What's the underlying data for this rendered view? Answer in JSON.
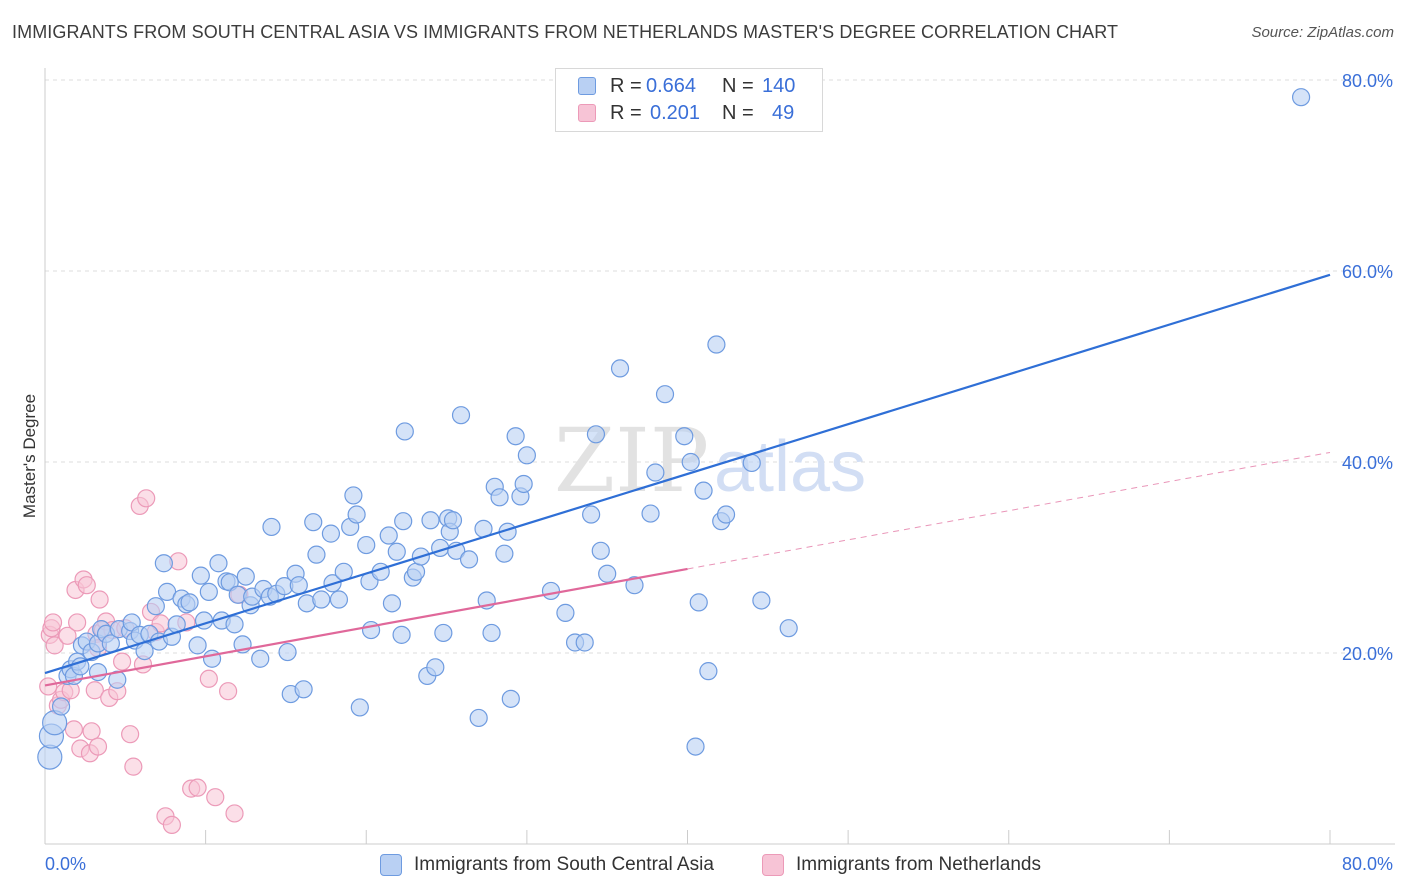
{
  "title": "IMMIGRANTS FROM SOUTH CENTRAL ASIA VS IMMIGRANTS FROM NETHERLANDS MASTER'S DEGREE CORRELATION CHART",
  "source": "Source: ZipAtlas.com",
  "watermark": {
    "zip": "ZIP",
    "atlas": "atlas"
  },
  "legend": {
    "rows": [
      {
        "r_label": "R =",
        "r_value": "0.664",
        "n_label": "N =",
        "n_value": "140"
      },
      {
        "r_label": "R =",
        "r_value": "0.201",
        "n_label": "N =",
        "n_value": "49"
      }
    ]
  },
  "bottom_legend": [
    {
      "label": "Immigrants from South Central Asia"
    },
    {
      "label": "Immigrants from Netherlands"
    }
  ],
  "colors": {
    "blue": "#2f6fd6",
    "blue_fill": "#b9d0f3",
    "blue_stroke": "#6e9be0",
    "pink": "#e0689a",
    "pink_fill": "#f7c4d6",
    "pink_stroke": "#ec9ab8",
    "grid": "#dedede",
    "tick_text": "#3a6fd8"
  },
  "chart_data": {
    "type": "scatter",
    "title": "IMMIGRANTS FROM SOUTH CENTRAL ASIA VS IMMIGRANTS FROM NETHERLANDS MASTER'S DEGREE CORRELATION CHART",
    "xlabel": "",
    "ylabel": "Master's Degree",
    "xlim": [
      0,
      80
    ],
    "ylim": [
      0,
      80
    ],
    "x_tick_labels": [
      "0.0%",
      "80.0%"
    ],
    "y_tick_labels": [
      "20.0%",
      "40.0%",
      "60.0%",
      "80.0%"
    ],
    "y_ticks": [
      20,
      40,
      60,
      80
    ],
    "grid": true,
    "legend_position": "top-center",
    "series": [
      {
        "name": "Immigrants from South Central Asia",
        "R": 0.664,
        "N": 140,
        "trend": {
          "x": [
            0,
            80
          ],
          "y": [
            17.9,
            59.6
          ],
          "style": "solid"
        },
        "points": [
          [
            0.3,
            9.1
          ],
          [
            0.4,
            11.3
          ],
          [
            0.6,
            12.7
          ],
          [
            1.0,
            14.4
          ],
          [
            1.4,
            17.6
          ],
          [
            1.6,
            18.3
          ],
          [
            1.8,
            17.6
          ],
          [
            2.0,
            19.1
          ],
          [
            2.2,
            18.6
          ],
          [
            2.3,
            20.8
          ],
          [
            2.6,
            21.2
          ],
          [
            2.9,
            20.1
          ],
          [
            3.3,
            18.0
          ],
          [
            3.3,
            21.0
          ],
          [
            3.5,
            22.5
          ],
          [
            3.8,
            22.0
          ],
          [
            4.1,
            21.0
          ],
          [
            4.5,
            17.2
          ],
          [
            4.6,
            22.5
          ],
          [
            5.3,
            22.3
          ],
          [
            5.4,
            23.2
          ],
          [
            5.6,
            21.3
          ],
          [
            5.9,
            21.9
          ],
          [
            6.2,
            20.2
          ],
          [
            6.5,
            22.0
          ],
          [
            6.9,
            24.9
          ],
          [
            7.1,
            21.2
          ],
          [
            7.4,
            29.4
          ],
          [
            7.6,
            26.4
          ],
          [
            7.9,
            21.7
          ],
          [
            8.2,
            23.0
          ],
          [
            8.5,
            25.7
          ],
          [
            8.8,
            25.1
          ],
          [
            9.0,
            25.3
          ],
          [
            9.5,
            20.8
          ],
          [
            9.7,
            28.1
          ],
          [
            9.9,
            23.4
          ],
          [
            10.2,
            26.4
          ],
          [
            10.4,
            19.4
          ],
          [
            10.8,
            29.4
          ],
          [
            11.0,
            23.4
          ],
          [
            11.3,
            27.5
          ],
          [
            11.5,
            27.4
          ],
          [
            11.8,
            23.0
          ],
          [
            12.0,
            26.1
          ],
          [
            12.3,
            20.9
          ],
          [
            12.5,
            28.0
          ],
          [
            12.8,
            25.0
          ],
          [
            12.9,
            25.9
          ],
          [
            13.4,
            19.4
          ],
          [
            13.6,
            26.7
          ],
          [
            14.0,
            25.9
          ],
          [
            14.1,
            33.2
          ],
          [
            14.4,
            26.2
          ],
          [
            14.9,
            27.0
          ],
          [
            15.1,
            20.1
          ],
          [
            15.3,
            15.7
          ],
          [
            15.6,
            28.3
          ],
          [
            15.8,
            27.1
          ],
          [
            16.1,
            16.2
          ],
          [
            16.3,
            25.2
          ],
          [
            16.7,
            33.7
          ],
          [
            16.9,
            30.3
          ],
          [
            17.2,
            25.6
          ],
          [
            17.8,
            32.5
          ],
          [
            17.9,
            27.3
          ],
          [
            18.3,
            25.6
          ],
          [
            18.6,
            28.5
          ],
          [
            19.0,
            33.2
          ],
          [
            19.2,
            36.5
          ],
          [
            19.4,
            34.5
          ],
          [
            19.6,
            14.3
          ],
          [
            20.0,
            31.3
          ],
          [
            20.2,
            27.5
          ],
          [
            20.3,
            22.4
          ],
          [
            20.9,
            28.5
          ],
          [
            21.4,
            32.3
          ],
          [
            21.6,
            25.2
          ],
          [
            21.9,
            30.6
          ],
          [
            22.2,
            21.9
          ],
          [
            22.3,
            33.8
          ],
          [
            22.4,
            43.2
          ],
          [
            22.9,
            27.9
          ],
          [
            23.1,
            28.5
          ],
          [
            23.4,
            30.1
          ],
          [
            23.8,
            17.6
          ],
          [
            24.0,
            33.9
          ],
          [
            24.3,
            18.5
          ],
          [
            24.6,
            31.0
          ],
          [
            24.8,
            22.1
          ],
          [
            25.1,
            34.1
          ],
          [
            25.2,
            32.7
          ],
          [
            25.4,
            33.9
          ],
          [
            25.6,
            30.7
          ],
          [
            25.9,
            44.9
          ],
          [
            26.4,
            29.8
          ],
          [
            27.0,
            13.2
          ],
          [
            27.3,
            33.0
          ],
          [
            27.5,
            25.5
          ],
          [
            27.8,
            22.1
          ],
          [
            28.0,
            37.4
          ],
          [
            28.3,
            36.3
          ],
          [
            28.6,
            30.4
          ],
          [
            28.8,
            32.7
          ],
          [
            29.0,
            15.2
          ],
          [
            29.3,
            42.7
          ],
          [
            29.6,
            36.4
          ],
          [
            29.8,
            37.7
          ],
          [
            30.0,
            40.7
          ],
          [
            31.5,
            26.5
          ],
          [
            32.4,
            24.2
          ],
          [
            33.0,
            21.1
          ],
          [
            33.6,
            21.1
          ],
          [
            34.0,
            34.5
          ],
          [
            34.3,
            42.9
          ],
          [
            34.6,
            30.7
          ],
          [
            35.0,
            28.3
          ],
          [
            35.8,
            49.8
          ],
          [
            36.7,
            27.1
          ],
          [
            37.7,
            34.6
          ],
          [
            38.0,
            38.9
          ],
          [
            38.6,
            47.1
          ],
          [
            39.8,
            42.7
          ],
          [
            40.2,
            40.0
          ],
          [
            40.5,
            10.2
          ],
          [
            40.7,
            25.3
          ],
          [
            41.0,
            37.0
          ],
          [
            41.3,
            18.1
          ],
          [
            41.8,
            52.3
          ],
          [
            42.1,
            33.8
          ],
          [
            42.4,
            34.5
          ],
          [
            44.0,
            39.9
          ],
          [
            44.6,
            25.5
          ],
          [
            46.3,
            22.6
          ],
          [
            78.2,
            78.2
          ]
        ]
      },
      {
        "name": "Immigrants from Netherlands",
        "R": 0.201,
        "N": 49,
        "trend": {
          "x": [
            0,
            40,
            80
          ],
          "y": [
            16.6,
            28.8,
            41.0
          ],
          "style": "solid to 40%, dashed beyond"
        },
        "points": [
          [
            0.2,
            16.5
          ],
          [
            0.3,
            21.9
          ],
          [
            0.4,
            22.6
          ],
          [
            0.5,
            23.2
          ],
          [
            0.6,
            20.8
          ],
          [
            0.8,
            14.5
          ],
          [
            1.0,
            15.1
          ],
          [
            1.2,
            15.9
          ],
          [
            1.4,
            21.8
          ],
          [
            1.6,
            16.1
          ],
          [
            1.8,
            12.0
          ],
          [
            1.9,
            26.6
          ],
          [
            2.0,
            23.2
          ],
          [
            2.2,
            10.0
          ],
          [
            2.4,
            27.7
          ],
          [
            2.6,
            27.1
          ],
          [
            2.8,
            9.5
          ],
          [
            2.9,
            11.8
          ],
          [
            3.1,
            16.1
          ],
          [
            3.2,
            22.0
          ],
          [
            3.3,
            20.5
          ],
          [
            3.3,
            10.2
          ],
          [
            3.4,
            25.6
          ],
          [
            3.6,
            22.4
          ],
          [
            3.8,
            23.3
          ],
          [
            4.0,
            15.3
          ],
          [
            4.2,
            22.4
          ],
          [
            4.5,
            16.0
          ],
          [
            4.8,
            19.1
          ],
          [
            5.0,
            22.6
          ],
          [
            5.3,
            11.5
          ],
          [
            5.5,
            8.1
          ],
          [
            5.9,
            35.4
          ],
          [
            6.1,
            18.8
          ],
          [
            6.3,
            36.2
          ],
          [
            6.6,
            24.3
          ],
          [
            6.9,
            22.2
          ],
          [
            7.2,
            23.1
          ],
          [
            7.5,
            2.9
          ],
          [
            7.9,
            2.0
          ],
          [
            8.3,
            29.6
          ],
          [
            8.8,
            23.2
          ],
          [
            9.1,
            5.8
          ],
          [
            9.5,
            5.9
          ],
          [
            10.2,
            17.3
          ],
          [
            10.6,
            4.9
          ],
          [
            11.4,
            16.0
          ],
          [
            11.8,
            3.2
          ],
          [
            12.1,
            26.1
          ]
        ]
      }
    ]
  }
}
